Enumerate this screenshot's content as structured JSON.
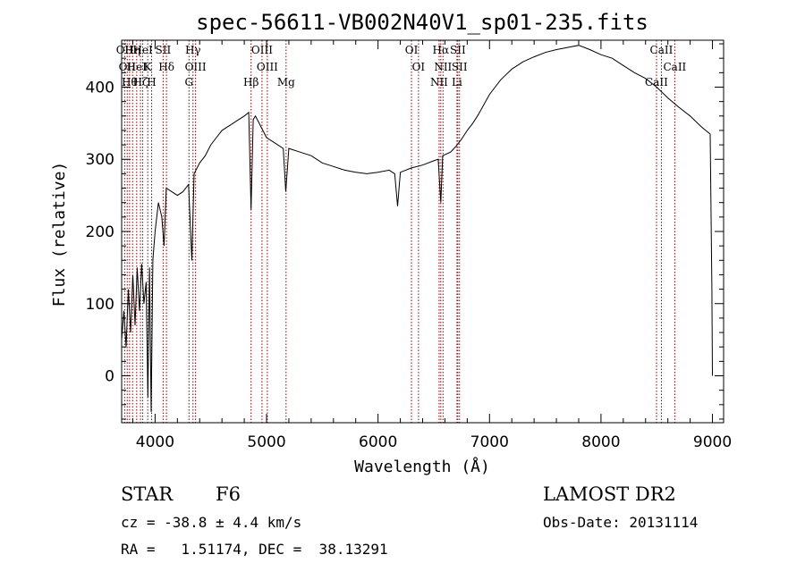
{
  "chart_data": {
    "type": "line",
    "title": "spec-56611-VB002N40V1_sp01-235.fits",
    "xlabel": "Wavelength (Å)",
    "ylabel": "Flux (relative)",
    "xlim": [
      3700,
      9100
    ],
    "ylim": [
      -65,
      465
    ],
    "xticks": [
      4000,
      5000,
      6000,
      7000,
      8000,
      9000
    ],
    "yticks": [
      0,
      100,
      200,
      300,
      400
    ],
    "grid": false,
    "series": [
      {
        "values": [
          [
            3700,
            50
          ],
          [
            3720,
            90
          ],
          [
            3740,
            40
          ],
          [
            3760,
            120
          ],
          [
            3780,
            60
          ],
          [
            3800,
            140
          ],
          [
            3820,
            70
          ],
          [
            3840,
            150
          ],
          [
            3860,
            90
          ],
          [
            3880,
            155
          ],
          [
            3900,
            100
          ],
          [
            3920,
            130
          ],
          [
            3935,
            -30
          ],
          [
            3950,
            150
          ],
          [
            3965,
            -50
          ],
          [
            3980,
            160
          ],
          [
            4000,
            200
          ],
          [
            4030,
            240
          ],
          [
            4060,
            220
          ],
          [
            4080,
            180
          ],
          [
            4100,
            260
          ],
          [
            4150,
            255
          ],
          [
            4200,
            250
          ],
          [
            4250,
            255
          ],
          [
            4300,
            265
          ],
          [
            4330,
            160
          ],
          [
            4350,
            280
          ],
          [
            4400,
            295
          ],
          [
            4450,
            305
          ],
          [
            4500,
            320
          ],
          [
            4550,
            330
          ],
          [
            4600,
            340
          ],
          [
            4650,
            345
          ],
          [
            4700,
            350
          ],
          [
            4750,
            355
          ],
          [
            4800,
            360
          ],
          [
            4840,
            365
          ],
          [
            4861,
            230
          ],
          [
            4880,
            355
          ],
          [
            4900,
            360
          ],
          [
            4950,
            345
          ],
          [
            5000,
            330
          ],
          [
            5050,
            325
          ],
          [
            5100,
            320
          ],
          [
            5150,
            315
          ],
          [
            5172,
            255
          ],
          [
            5200,
            315
          ],
          [
            5300,
            310
          ],
          [
            5400,
            305
          ],
          [
            5500,
            295
          ],
          [
            5600,
            290
          ],
          [
            5700,
            285
          ],
          [
            5800,
            282
          ],
          [
            5900,
            280
          ],
          [
            6000,
            282
          ],
          [
            6100,
            285
          ],
          [
            6150,
            280
          ],
          [
            6175,
            235
          ],
          [
            6200,
            282
          ],
          [
            6300,
            288
          ],
          [
            6400,
            292
          ],
          [
            6500,
            298
          ],
          [
            6540,
            300
          ],
          [
            6563,
            240
          ],
          [
            6580,
            305
          ],
          [
            6650,
            310
          ],
          [
            6700,
            318
          ],
          [
            6750,
            328
          ],
          [
            6800,
            340
          ],
          [
            6850,
            350
          ],
          [
            6900,
            362
          ],
          [
            7000,
            390
          ],
          [
            7100,
            410
          ],
          [
            7200,
            425
          ],
          [
            7300,
            435
          ],
          [
            7400,
            442
          ],
          [
            7500,
            448
          ],
          [
            7600,
            452
          ],
          [
            7700,
            455
          ],
          [
            7800,
            458
          ],
          [
            7900,
            452
          ],
          [
            8000,
            445
          ],
          [
            8100,
            440
          ],
          [
            8200,
            430
          ],
          [
            8300,
            420
          ],
          [
            8400,
            412
          ],
          [
            8500,
            400
          ],
          [
            8600,
            385
          ],
          [
            8700,
            372
          ],
          [
            8800,
            360
          ],
          [
            8900,
            345
          ],
          [
            8980,
            335
          ],
          [
            8995,
            120
          ],
          [
            9000,
            0
          ]
        ]
      }
    ],
    "lines": [
      {
        "x": 3727,
        "labels": [
          "OII"
        ]
      },
      {
        "x": 3750,
        "labels": [
          "OII"
        ]
      },
      {
        "x": 3771,
        "labels": [
          "Hθ"
        ]
      },
      {
        "x": 3798,
        "labels": [
          "Hη"
        ]
      },
      {
        "x": 3835,
        "labels": [
          "HeI"
        ]
      },
      {
        "x": 3869,
        "labels": [
          "Hζ"
        ]
      },
      {
        "x": 3889,
        "labels": [
          "HeI"
        ]
      },
      {
        "x": 3934,
        "labels": [
          "K"
        ]
      },
      {
        "x": 3969,
        "labels": [
          "H"
        ]
      },
      {
        "x": 4072,
        "labels": [
          "SII"
        ]
      },
      {
        "x": 4102,
        "labels": [
          "Hδ"
        ]
      },
      {
        "x": 4304,
        "labels": [
          "G"
        ]
      },
      {
        "x": 4340,
        "labels": [
          "Hγ"
        ]
      },
      {
        "x": 4363,
        "labels": [
          "OIII"
        ]
      },
      {
        "x": 4861,
        "labels": [
          "Hβ"
        ]
      },
      {
        "x": 4959,
        "labels": [
          "OIII"
        ]
      },
      {
        "x": 5007,
        "labels": [
          "OIII"
        ]
      },
      {
        "x": 5175,
        "labels": [
          "Mg"
        ]
      },
      {
        "x": 6300,
        "labels": [
          "OI"
        ]
      },
      {
        "x": 6363,
        "labels": [
          "OI"
        ]
      },
      {
        "x": 6548,
        "labels": [
          "NII"
        ]
      },
      {
        "x": 6563,
        "labels": [
          "Hα"
        ]
      },
      {
        "x": 6583,
        "labels": [
          "NII"
        ]
      },
      {
        "x": 6708,
        "labels": [
          "Li"
        ]
      },
      {
        "x": 6716,
        "labels": [
          "SII"
        ]
      },
      {
        "x": 6731,
        "labels": [
          "SII"
        ]
      },
      {
        "x": 8498,
        "labels": [
          "CaII"
        ]
      },
      {
        "x": 8542,
        "labels": [
          "CaII"
        ]
      },
      {
        "x": 8662,
        "labels": [
          "CaII"
        ]
      }
    ]
  },
  "info": {
    "class_label": "STAR",
    "subclass": "F6",
    "survey": "LAMOST DR2",
    "cz": "cz = -38.8 ± 4.4 km/s",
    "obs_date": "Obs-Date: 20131114",
    "radec": "RA =   1.51174, DEC =  38.13291"
  }
}
